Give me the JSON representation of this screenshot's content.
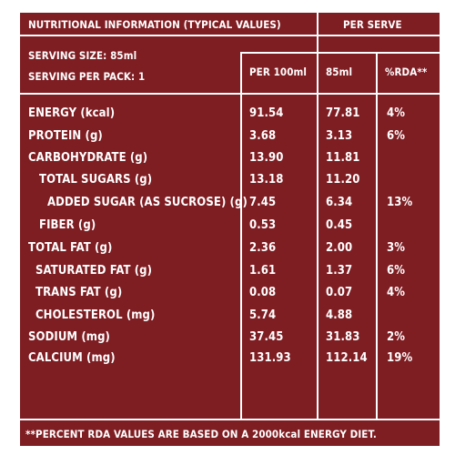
{
  "header": {
    "title": "NUTRITIONAL INFORMATION (TYPICAL VALUES)",
    "per_serve": "PER SERVE",
    "serving_size": "SERVING SIZE: 85ml",
    "serving_per_pack": "SERVING PER PACK: 1",
    "col_per100": "PER 100ml",
    "col_85": "85ml",
    "col_rda": "%RDA**"
  },
  "rows": [
    {
      "label": "ENERGY (kcal)",
      "per100": "91.54",
      "serve": "77.81",
      "rda": "4%"
    },
    {
      "label": "PROTEIN (g)",
      "per100": "3.68",
      "serve": "3.13",
      "rda": "6%"
    },
    {
      "label": "CARBOHYDRATE (g)",
      "per100": "13.90",
      "serve": "11.81",
      "rda": ""
    },
    {
      "label": "TOTAL SUGARS (g)",
      "per100": "13.18",
      "serve": "11.20",
      "rda": ""
    },
    {
      "label": "ADDED SUGAR (AS SUCROSE) (g)",
      "per100": "7.45",
      "serve": "6.34",
      "rda": "13%"
    },
    {
      "label": "FIBER (g)",
      "per100": "0.53",
      "serve": "0.45",
      "rda": ""
    },
    {
      "label": "TOTAL FAT (g)",
      "per100": "2.36",
      "serve": "2.00",
      "rda": "3%"
    },
    {
      "label": "SATURATED FAT (g)",
      "per100": "1.61",
      "serve": "1.37",
      "rda": "6%"
    },
    {
      "label": "TRANS FAT (g)",
      "per100": "0.08",
      "serve": "0.07",
      "rda": "4%"
    },
    {
      "label": "CHOLESTEROL (mg)",
      "per100": "5.74",
      "serve": "4.88",
      "rda": ""
    },
    {
      "label": "SODIUM (mg)",
      "per100": "37.45",
      "serve": "31.83",
      "rda": "2%"
    },
    {
      "label": "CALCIUM (mg)",
      "per100": "131.93",
      "serve": "112.14",
      "rda": "19%"
    }
  ],
  "footnote": "**PERCENT RDA VALUES ARE BASED ON A 2000kcal ENERGY DIET.",
  "colors": {
    "background": "#7e1d22",
    "text": "#ffffff"
  }
}
